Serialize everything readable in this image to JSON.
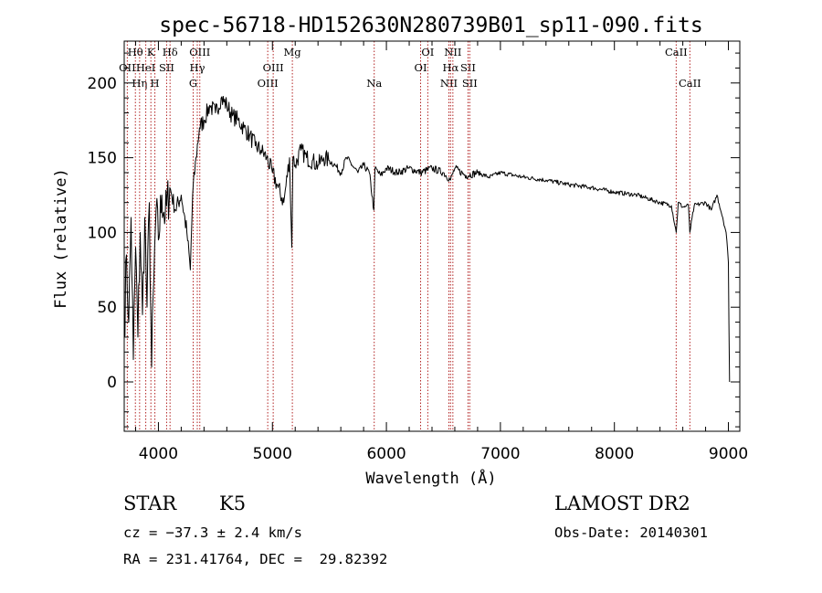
{
  "chart_data": {
    "type": "line",
    "title": "spec-56718-HD152630N280739B01_sp11-090.fits",
    "xlabel": "Wavelength (Å)",
    "ylabel": "Flux (relative)",
    "xlim": [
      3700,
      9100
    ],
    "ylim": [
      -33,
      228
    ],
    "x_ticks": [
      4000,
      5000,
      6000,
      7000,
      8000,
      9000
    ],
    "y_ticks": [
      0,
      50,
      100,
      150,
      200
    ],
    "grid": false,
    "line_color": "#000000",
    "marker_color": "#b22222",
    "spectral_lines": [
      {
        "name": "Hθ",
        "wavelength": 3798,
        "label_row": 1
      },
      {
        "name": "OII",
        "wavelength": 3727,
        "label_row": 2
      },
      {
        "name": "Hη",
        "wavelength": 3835,
        "label_row": 3
      },
      {
        "name": "HeI",
        "wavelength": 3889,
        "label_row": 2
      },
      {
        "name": "K",
        "wavelength": 3934,
        "label_row": 1
      },
      {
        "name": "H",
        "wavelength": 3969,
        "label_row": 3
      },
      {
        "name": "SII",
        "wavelength": 4072,
        "label_row": 2
      },
      {
        "name": "Hδ",
        "wavelength": 4102,
        "label_row": 1
      },
      {
        "name": "G",
        "wavelength": 4305,
        "label_row": 3
      },
      {
        "name": "OIII",
        "wavelength": 4363,
        "label_row": 1
      },
      {
        "name": "Hγ",
        "wavelength": 4341,
        "label_row": 2
      },
      {
        "name": "OIII",
        "wavelength": 4959,
        "label_row": 3
      },
      {
        "name": "OIII",
        "wavelength": 5007,
        "label_row": 2
      },
      {
        "name": "Mg",
        "wavelength": 5175,
        "label_row": 1
      },
      {
        "name": "Na",
        "wavelength": 5893,
        "label_row": 3
      },
      {
        "name": "OI",
        "wavelength": 6300,
        "label_row": 2
      },
      {
        "name": "OI",
        "wavelength": 6363,
        "label_row": 1
      },
      {
        "name": "NII",
        "wavelength": 6548,
        "label_row": 3
      },
      {
        "name": "Hα",
        "wavelength": 6563,
        "label_row": 2
      },
      {
        "name": "NII",
        "wavelength": 6583,
        "label_row": 1
      },
      {
        "name": "SII",
        "wavelength": 6716,
        "label_row": 2
      },
      {
        "name": "SII",
        "wavelength": 6731,
        "label_row": 3
      },
      {
        "name": "CaII",
        "wavelength": 8542,
        "label_row": 1
      },
      {
        "name": "CaII",
        "wavelength": 8662,
        "label_row": 3
      }
    ],
    "series": [
      {
        "x": [
          3700,
          3720,
          3740,
          3760,
          3780,
          3800,
          3820,
          3840,
          3860,
          3880,
          3900,
          3920,
          3940,
          3960,
          3980,
          4000,
          4030,
          4060,
          4100,
          4150,
          4200,
          4250,
          4280,
          4300,
          4330,
          4360,
          4400,
          4450,
          4500,
          4550,
          4600,
          4650,
          4700,
          4750,
          4800,
          4850,
          4900,
          4950,
          5000,
          5050,
          5100,
          5150,
          5170,
          5180,
          5200,
          5250,
          5300,
          5350,
          5400,
          5450,
          5500,
          5550,
          5600,
          5650,
          5700,
          5750,
          5800,
          5850,
          5890,
          5900,
          5950,
          6000,
          6100,
          6200,
          6300,
          6400,
          6500,
          6563,
          6600,
          6700,
          6800,
          6900,
          7000,
          7200,
          7400,
          7600,
          7800,
          8000,
          8200,
          8400,
          8500,
          8542,
          8560,
          8600,
          8650,
          8662,
          8700,
          8800,
          8850,
          8900,
          8950,
          8980,
          9000,
          9010
        ],
        "y": [
          30,
          85,
          40,
          110,
          15,
          90,
          30,
          100,
          45,
          110,
          50,
          120,
          10,
          70,
          115,
          95,
          125,
          110,
          130,
          115,
          125,
          100,
          75,
          125,
          150,
          170,
          175,
          185,
          180,
          190,
          185,
          178,
          175,
          170,
          165,
          158,
          155,
          150,
          140,
          130,
          120,
          150,
          90,
          150,
          145,
          155,
          150,
          148,
          145,
          150,
          148,
          145,
          140,
          150,
          145,
          140,
          145,
          140,
          115,
          143,
          138,
          143,
          140,
          143,
          140,
          143,
          140,
          135,
          143,
          138,
          140,
          137,
          140,
          137,
          135,
          132,
          130,
          127,
          125,
          120,
          118,
          100,
          120,
          117,
          118,
          100,
          118,
          120,
          115,
          125,
          110,
          100,
          80,
          0
        ]
      }
    ]
  },
  "info": {
    "object_class": "STAR",
    "subclass": "K5",
    "cz": "cz = −37.3 ± 2.4 km/s",
    "coords": "RA = 231.41764, DEC =  29.82392",
    "survey": "LAMOST DR2",
    "obs_date": "Obs-Date: 20140301"
  }
}
